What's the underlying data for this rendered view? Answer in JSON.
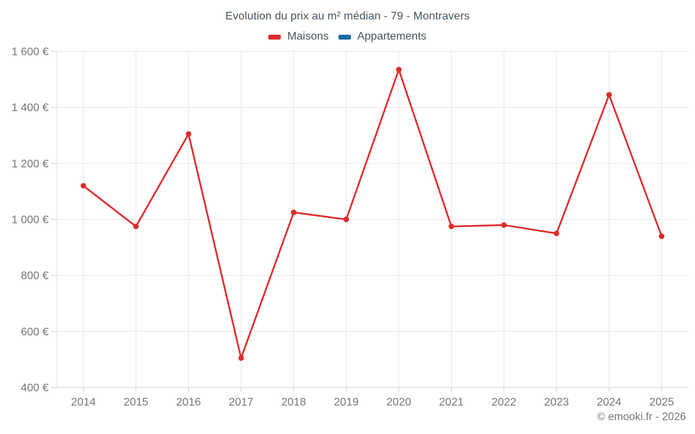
{
  "header": {
    "title": "Evolution du prix au m² médian - 79 - Montravers"
  },
  "legend": {
    "items": [
      {
        "label": "Maisons",
        "color": "#dd2c2c"
      },
      {
        "label": "Appartements",
        "color": "#1b6d9e"
      }
    ]
  },
  "footer": {
    "credit": "© emooki.fr - 2026"
  },
  "chart_data": {
    "type": "line",
    "title": "Evolution du prix au m² médian - 79 - Montravers",
    "x": [
      "2014",
      "2015",
      "2016",
      "2017",
      "2018",
      "2019",
      "2020",
      "2021",
      "2022",
      "2023",
      "2024",
      "2025"
    ],
    "series": [
      {
        "name": "Maisons",
        "color": "#dd2c2c",
        "values": [
          1120,
          975,
          1305,
          505,
          1025,
          1000,
          1535,
          975,
          980,
          950,
          1445,
          940
        ]
      },
      {
        "name": "Appartements",
        "color": "#1b6d9e",
        "values": []
      }
    ],
    "xlabel": "",
    "ylabel": "",
    "ylim": [
      400,
      1600
    ],
    "yticks": [
      {
        "value": 400,
        "label": "400 €"
      },
      {
        "value": 600,
        "label": "600 €"
      },
      {
        "value": 800,
        "label": "800 €"
      },
      {
        "value": 1000,
        "label": "1 000 €"
      },
      {
        "value": 1200,
        "label": "1 200 €"
      },
      {
        "value": 1400,
        "label": "1 400 €"
      },
      {
        "value": 1600,
        "label": "1 600 €"
      }
    ],
    "grid": true,
    "legend_position": "top",
    "annotation": "© emooki.fr - 2026"
  }
}
